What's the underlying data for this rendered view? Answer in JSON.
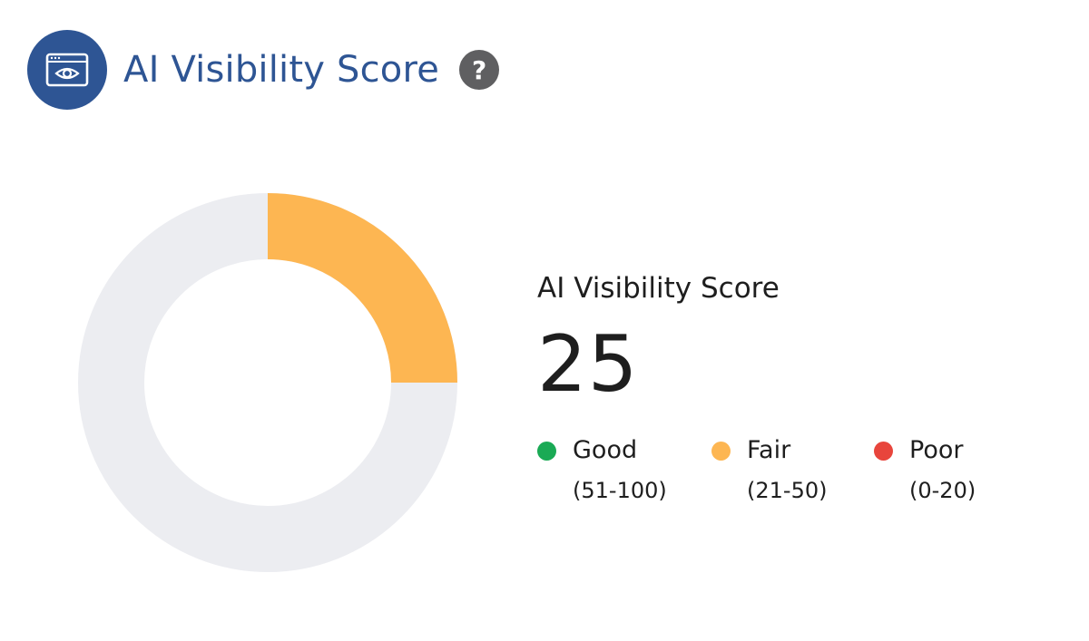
{
  "header": {
    "title": "AI Visibility Score",
    "icon": "browser-eye-icon",
    "help_icon": "question-mark-icon",
    "help_glyph": "?",
    "accent_color": "#2e5594"
  },
  "score": {
    "label": "AI Visibility Score",
    "value": "25",
    "fraction": 0.25,
    "fill_color": "#fdb652",
    "track_color": "#ecedf1"
  },
  "legend": [
    {
      "name": "Good",
      "range": "(51-100)",
      "color": "#1aaa55"
    },
    {
      "name": "Fair",
      "range": "(21-50)",
      "color": "#fdb652"
    },
    {
      "name": "Poor",
      "range": "(0-20)",
      "color": "#e8453c"
    }
  ]
}
